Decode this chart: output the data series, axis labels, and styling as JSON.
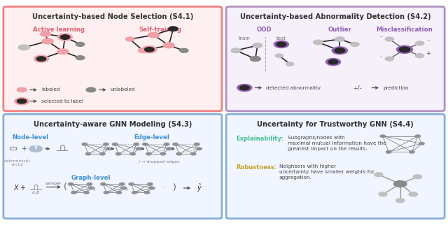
{
  "panel_titles": [
    "Uncertainty-based Node Selection (S4.1)",
    "Uncertainty-based Abnormality Detection (S4.2)",
    "Uncertainty-aware GNN Modeling (S4.3)",
    "Uncertainty for Trustworthy GNN (S4.4)"
  ],
  "panel_border_colors": [
    "#f08080",
    "#b090c0",
    "#87afd7",
    "#87afd7"
  ],
  "panel_bg_colors": [
    "#fef0f0",
    "#f5f0fa",
    "#f0f5ff",
    "#f0f5ff"
  ],
  "s41_subtitle1": "Active learning",
  "s41_subtitle2": "Self-training",
  "s41_subtitle_color": "#e06070",
  "s42_subtitle1": "OOD",
  "s42_subtitle2": "Outlier",
  "s42_subtitle3": "Misclassification",
  "s42_subtitle_color": "#9060b0",
  "s43_level_color": "#4090d0",
  "s44_explainability_color": "#40c090",
  "s44_robustness_color": "#c8a020",
  "pink_node_color": "#f0a0a8",
  "dark_node_color": "#282828",
  "gray_node_color": "#888888",
  "light_gray_color": "#c0c0c0",
  "purple_ring_color": "#9060b0",
  "background_color": "#ffffff"
}
